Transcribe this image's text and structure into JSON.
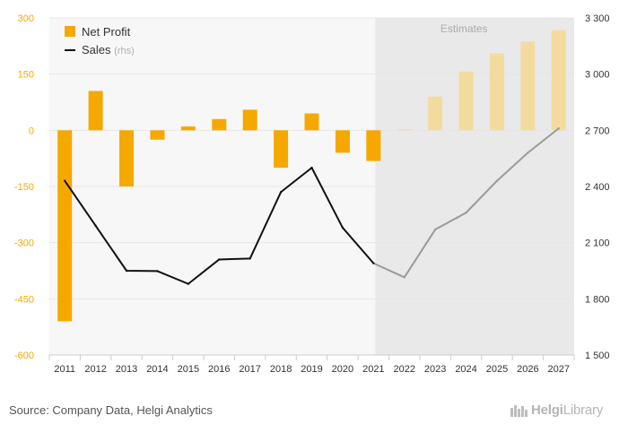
{
  "chart_data": {
    "type": "bar+line",
    "categories": [
      "2011",
      "2012",
      "2013",
      "2014",
      "2015",
      "2016",
      "2017",
      "2018",
      "2019",
      "2020",
      "2021",
      "2022",
      "2023",
      "2024",
      "2025",
      "2026",
      "2027"
    ],
    "estimates_from": "2022",
    "estimates_label": "Estimates",
    "series": [
      {
        "name": "Net Profit",
        "axis": "left",
        "kind": "bar",
        "values": [
          -510,
          105,
          -150,
          -25,
          10,
          30,
          55,
          -100,
          45,
          -60,
          -82,
          3,
          90,
          157,
          205,
          237,
          267
        ]
      },
      {
        "name": "Sales",
        "name_suffix": "(rhs)",
        "axis": "right",
        "kind": "line",
        "values": [
          2430,
          2190,
          1950,
          1948,
          1880,
          2010,
          2015,
          2370,
          2500,
          2180,
          1990,
          1915,
          2170,
          2260,
          2430,
          2580,
          2710
        ]
      }
    ],
    "left_axis": {
      "min": -600,
      "max": 300,
      "ticks": [
        "300",
        "150",
        "0",
        "-150",
        "-300",
        "-450",
        "-600"
      ],
      "tick_values": [
        300,
        150,
        0,
        -150,
        -300,
        -450,
        -600
      ]
    },
    "right_axis": {
      "min": 1500,
      "max": 3300,
      "ticks": [
        "3 300",
        "3 000",
        "2 700",
        "2 400",
        "2 100",
        "1 800",
        "1 500"
      ],
      "tick_values": [
        3300,
        3000,
        2700,
        2400,
        2100,
        1800,
        1500
      ]
    },
    "colors": {
      "bar": "#f5a800",
      "bar_estimate": "#f3dba0",
      "line": "#111111",
      "line_estimate": "#9a9a9a",
      "axis_left": "#f5a800",
      "estimates_bg": "#e9e9e9"
    }
  },
  "footer": {
    "source": "Source: Company Data, Helgi Analytics",
    "brand_bold": "Helgi",
    "brand_light": "Library"
  }
}
